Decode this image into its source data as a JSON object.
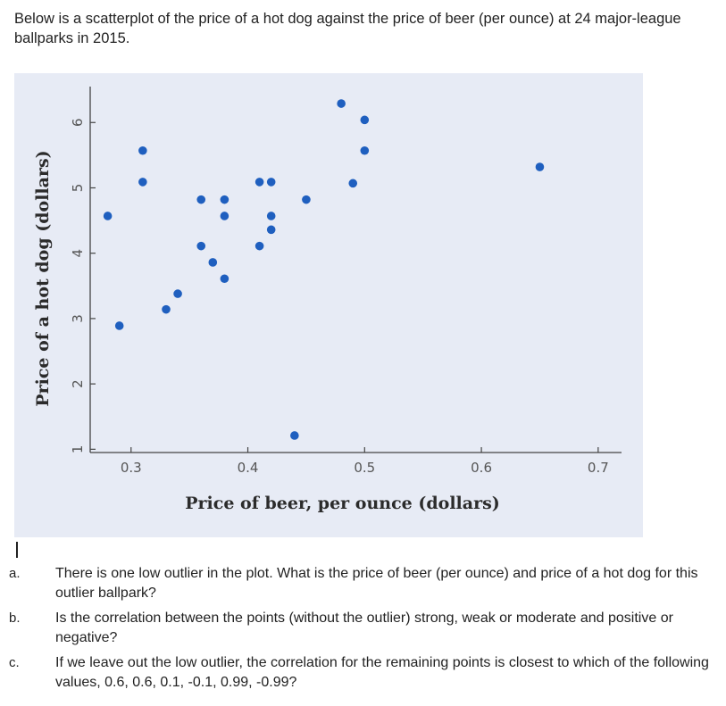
{
  "intro_text": "Below is a scatterplot of the price of a hot dog against the price of beer (per ounce) at 24 major-league ballparks in 2015.",
  "chart_data": {
    "type": "scatter",
    "title": "",
    "xlabel": "Price of beer, per ounce (dollars)",
    "ylabel": "Price of a hot dog (dollars)",
    "xlim": [
      0.265,
      0.72
    ],
    "ylim": [
      0.95,
      6.55
    ],
    "xticks": [
      0.3,
      0.4,
      0.5,
      0.6,
      0.7
    ],
    "yticks": [
      1,
      2,
      3,
      4,
      5,
      6
    ],
    "xtick_labels": [
      "0.3",
      "0.4",
      "0.5",
      "0.6",
      "0.7"
    ],
    "ytick_labels": [
      "1",
      "2",
      "3",
      "4",
      "5",
      "6"
    ],
    "grid": false,
    "marker_color": "#1f5fbf",
    "background_color": "#e7ebf5",
    "series": [
      {
        "points": [
          {
            "x": 0.28,
            "y": 4.57
          },
          {
            "x": 0.29,
            "y": 2.89
          },
          {
            "x": 0.31,
            "y": 5.09
          },
          {
            "x": 0.31,
            "y": 5.57
          },
          {
            "x": 0.33,
            "y": 3.14
          },
          {
            "x": 0.34,
            "y": 3.38
          },
          {
            "x": 0.36,
            "y": 4.82
          },
          {
            "x": 0.36,
            "y": 4.11
          },
          {
            "x": 0.37,
            "y": 3.86
          },
          {
            "x": 0.38,
            "y": 4.82
          },
          {
            "x": 0.38,
            "y": 4.57
          },
          {
            "x": 0.38,
            "y": 3.61
          },
          {
            "x": 0.41,
            "y": 5.09
          },
          {
            "x": 0.41,
            "y": 4.11
          },
          {
            "x": 0.42,
            "y": 5.09
          },
          {
            "x": 0.42,
            "y": 4.57
          },
          {
            "x": 0.42,
            "y": 4.36
          },
          {
            "x": 0.44,
            "y": 1.21
          },
          {
            "x": 0.45,
            "y": 4.82
          },
          {
            "x": 0.48,
            "y": 6.29
          },
          {
            "x": 0.49,
            "y": 5.07
          },
          {
            "x": 0.5,
            "y": 6.04
          },
          {
            "x": 0.5,
            "y": 5.57
          },
          {
            "x": 0.65,
            "y": 5.32
          }
        ]
      }
    ]
  },
  "questions": [
    {
      "letter": "a.",
      "text": "There is one low outlier in the plot. What is the price of beer (per ounce) and price of a hot dog for this outlier ballpark?"
    },
    {
      "letter": "b.",
      "text": "Is the correlation between the points (without the outlier) strong, weak or moderate and positive or negative?"
    },
    {
      "letter": "c.",
      "text": "If we leave out the low outlier, the correlation for the remaining points is closest to which of the following values, 0.6, 0.6, 0.1, -0.1, 0.99, -0.99?"
    }
  ]
}
